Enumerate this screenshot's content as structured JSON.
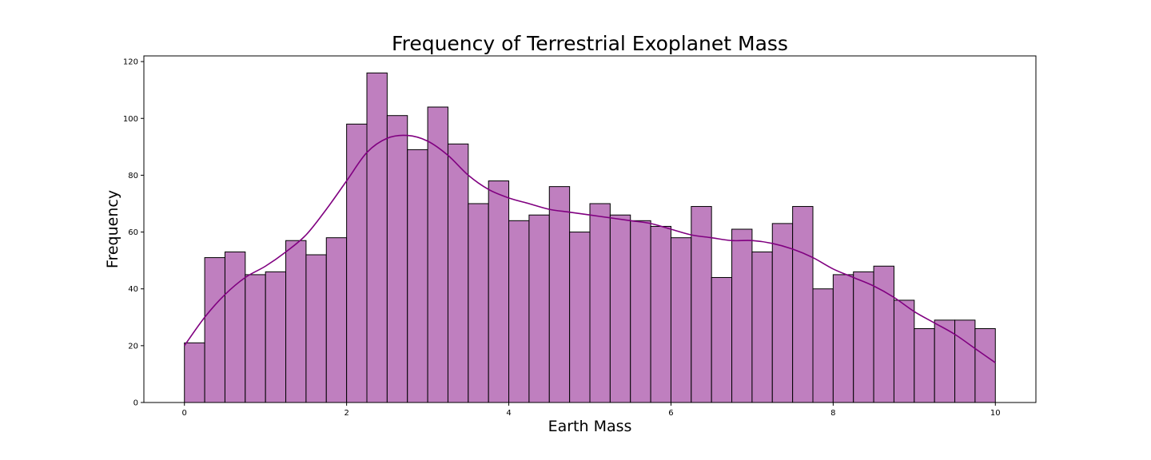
{
  "chart_data": {
    "type": "bar",
    "subtype": "histogram",
    "title": "Frequency of Terrestrial Exoplanet Mass",
    "xlabel": "Earth Mass",
    "ylabel": "Frequency",
    "xlim": [
      -0.5,
      10.5
    ],
    "ylim": [
      0,
      122
    ],
    "xticks": [
      0,
      2,
      4,
      6,
      8,
      10
    ],
    "yticks": [
      0,
      20,
      40,
      60,
      80,
      100,
      120
    ],
    "grid": false,
    "bin_edges": [
      0.0,
      0.25,
      0.5,
      0.75,
      1.0,
      1.25,
      1.5,
      1.75,
      2.0,
      2.25,
      2.5,
      2.75,
      3.0,
      3.25,
      3.5,
      3.75,
      4.0,
      4.25,
      4.5,
      4.75,
      5.0,
      5.25,
      5.5,
      5.75,
      6.0,
      6.25,
      6.5,
      6.75,
      7.0,
      7.25,
      7.5,
      7.75,
      8.0,
      8.25,
      8.5,
      8.75,
      9.0,
      9.25,
      9.5,
      9.75,
      10.0
    ],
    "values": [
      21,
      51,
      53,
      45,
      46,
      57,
      52,
      58,
      98,
      116,
      101,
      89,
      104,
      91,
      70,
      78,
      64,
      66,
      76,
      60,
      70,
      66,
      64,
      62,
      58,
      69,
      44,
      61,
      53,
      63,
      69,
      40,
      45,
      46,
      48,
      36,
      26,
      29,
      29,
      26
    ],
    "kde": {
      "x": [
        0.0,
        0.25,
        0.5,
        0.75,
        1.0,
        1.25,
        1.5,
        1.75,
        2.0,
        2.25,
        2.5,
        2.75,
        3.0,
        3.25,
        3.5,
        3.75,
        4.0,
        4.25,
        4.5,
        4.75,
        5.0,
        5.25,
        5.5,
        5.75,
        6.0,
        6.25,
        6.5,
        6.75,
        7.0,
        7.25,
        7.5,
        7.75,
        8.0,
        8.25,
        8.5,
        8.75,
        9.0,
        9.25,
        9.5,
        9.75,
        10.0
      ],
      "y": [
        20,
        30,
        38,
        44,
        48,
        53,
        59,
        68,
        78,
        88,
        93,
        94,
        92,
        87,
        80,
        75,
        72,
        70,
        68,
        67,
        66,
        65,
        64,
        63,
        61,
        59,
        58,
        57,
        57,
        56,
        54,
        51,
        47,
        44,
        41,
        37,
        32,
        28,
        24,
        19,
        14
      ]
    },
    "colors": {
      "bar_fill": "#bf7fbf",
      "bar_edge": "#000000",
      "kde_line": "#800080"
    }
  }
}
